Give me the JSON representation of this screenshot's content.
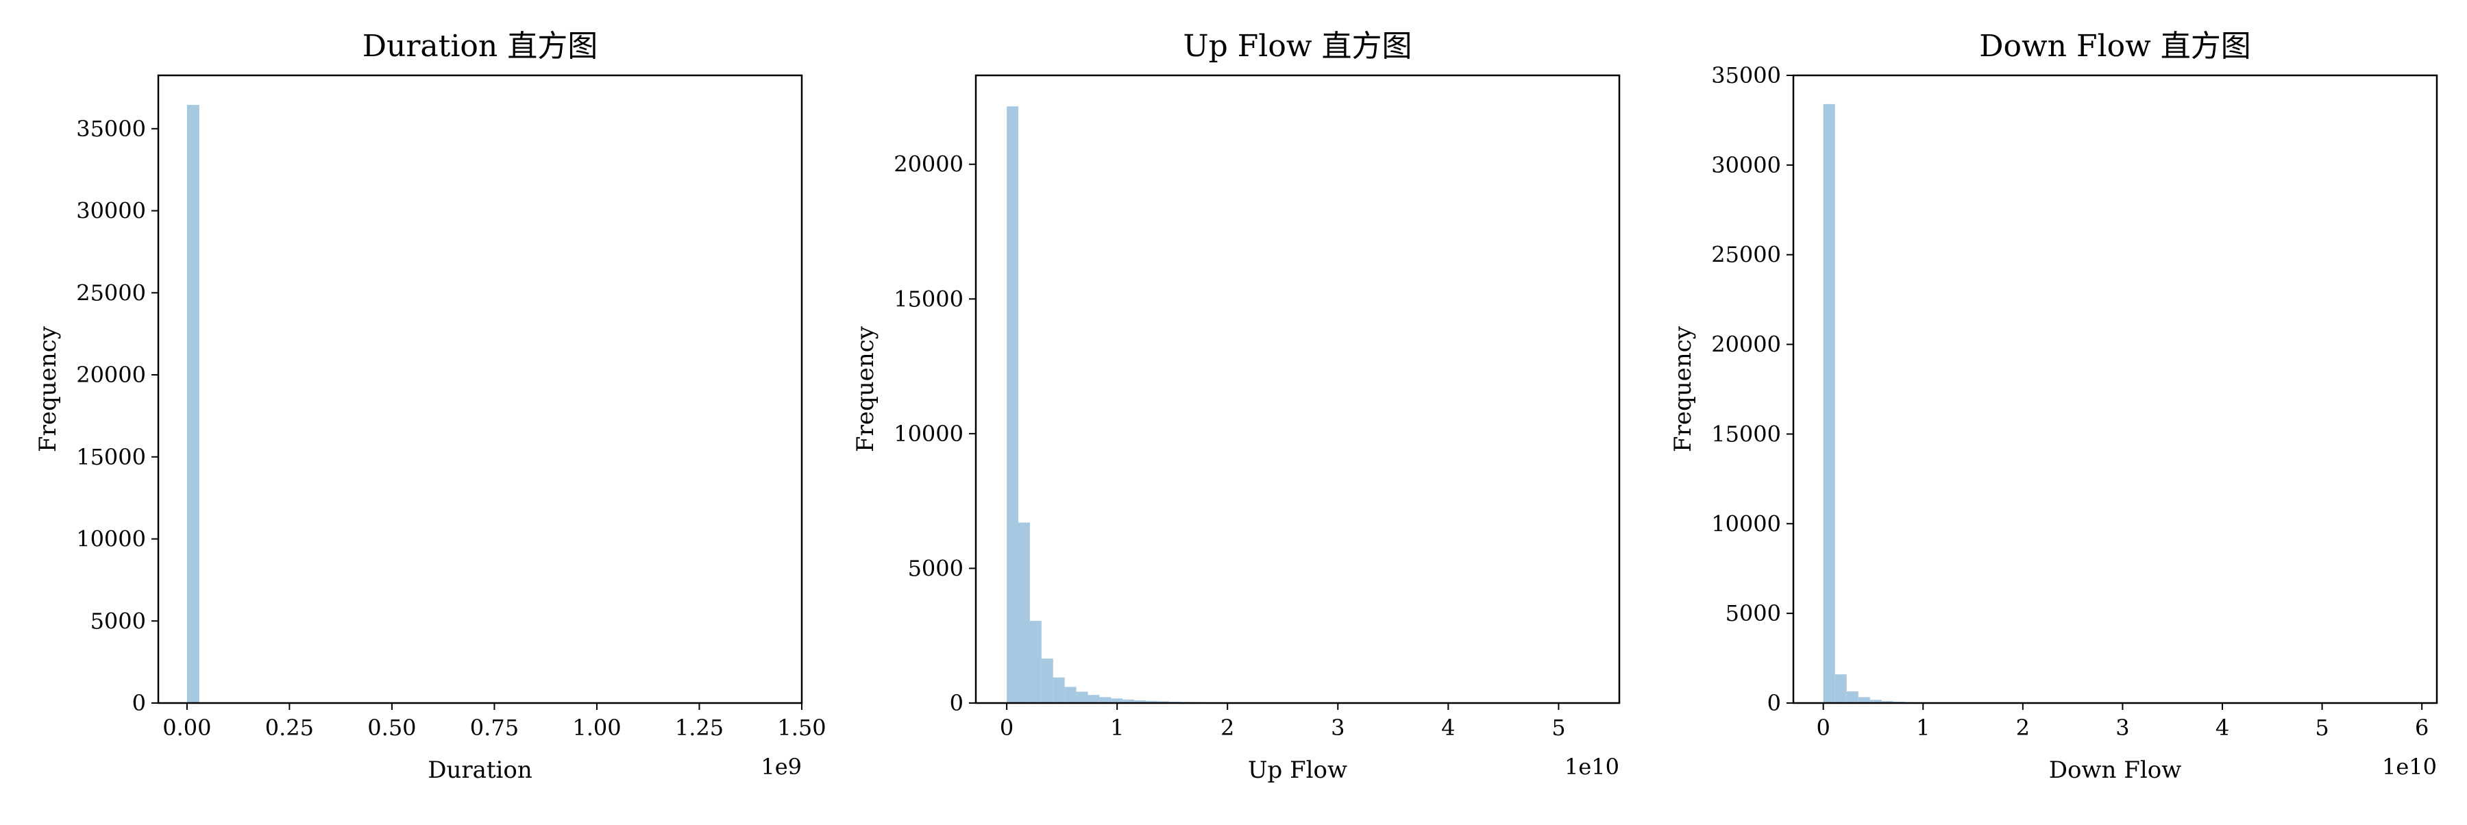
{
  "chart_data": [
    {
      "type": "bar",
      "title": "Duration 直方图",
      "xlabel": "Duration",
      "ylabel": "Frequency",
      "x_offset_label": "1e9",
      "xlim": [
        -0.07,
        1.5
      ],
      "ylim": [
        0,
        38250
      ],
      "x_ticks": [
        0.0,
        0.25,
        0.5,
        0.75,
        1.0,
        1.25,
        1.5
      ],
      "x_tick_labels": [
        "0.00",
        "0.25",
        "0.50",
        "0.75",
        "1.00",
        "1.25",
        "1.50"
      ],
      "y_ticks": [
        0,
        5000,
        10000,
        15000,
        20000,
        25000,
        30000,
        35000
      ],
      "y_tick_labels": [
        "0",
        "5000",
        "10000",
        "15000",
        "20000",
        "25000",
        "30000",
        "35000"
      ],
      "bin_width": 0.03,
      "bin_start": 0.0,
      "values": [
        36450
      ],
      "bar_color": "#a6c8e0"
    },
    {
      "type": "bar",
      "title": "Up Flow 直方图",
      "xlabel": "Up Flow",
      "ylabel": "Frequency",
      "x_offset_label": "1e10",
      "xlim": [
        -0.28,
        5.55
      ],
      "ylim": [
        0,
        23300
      ],
      "x_ticks": [
        0,
        1,
        2,
        3,
        4,
        5
      ],
      "x_tick_labels": [
        "0",
        "1",
        "2",
        "3",
        "4",
        "5"
      ],
      "y_ticks": [
        0,
        5000,
        10000,
        15000,
        20000
      ],
      "y_tick_labels": [
        "0",
        "5000",
        "10000",
        "15000",
        "20000"
      ],
      "bin_width": 0.105,
      "bin_start": 0.0,
      "values": [
        22150,
        6700,
        3050,
        1650,
        950,
        600,
        420,
        300,
        220,
        170,
        130,
        100,
        80,
        65,
        50,
        40,
        35,
        30,
        25,
        20,
        18,
        15,
        12,
        10,
        9,
        8,
        7,
        6,
        5,
        5,
        4,
        4,
        3,
        3,
        3,
        2,
        2,
        2,
        2,
        2,
        1,
        1,
        1,
        1,
        1,
        1,
        1,
        1,
        1,
        1
      ],
      "bar_color": "#a6c8e0"
    },
    {
      "type": "bar",
      "title": "Down Flow 直方图",
      "xlabel": "Down Flow",
      "ylabel": "Frequency",
      "x_offset_label": "1e10",
      "xlim": [
        -0.3,
        6.15
      ],
      "ylim": [
        0,
        35000
      ],
      "x_ticks": [
        0,
        1,
        2,
        3,
        4,
        5,
        6
      ],
      "x_tick_labels": [
        "0",
        "1",
        "2",
        "3",
        "4",
        "5",
        "6"
      ],
      "y_ticks": [
        0,
        5000,
        10000,
        15000,
        20000,
        25000,
        30000,
        35000
      ],
      "y_tick_labels": [
        "0",
        "5000",
        "10000",
        "15000",
        "20000",
        "25000",
        "30000",
        "35000"
      ],
      "bin_width": 0.117,
      "bin_start": 0.0,
      "values": [
        33400,
        1600,
        650,
        330,
        180,
        110,
        75,
        50,
        35,
        25,
        20,
        15,
        12,
        10,
        8,
        6,
        5,
        4,
        4,
        3,
        3,
        2,
        2,
        2,
        2,
        1,
        1,
        1,
        1,
        1,
        1,
        1,
        1,
        1,
        1,
        1,
        1,
        1,
        1,
        1,
        1,
        1,
        1,
        1,
        1,
        1,
        1,
        1,
        1,
        1
      ],
      "bar_color": "#a6c8e0"
    }
  ]
}
